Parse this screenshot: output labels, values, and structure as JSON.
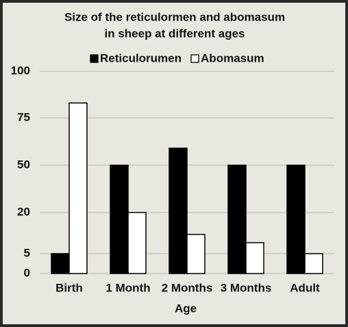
{
  "chart_data": {
    "type": "bar",
    "title": [
      "Size of the reticulormen and abomasum",
      "in sheep at different ages"
    ],
    "x_label": "Age",
    "categories": [
      "Birth",
      "1 Month",
      "2 Months",
      "3 Months",
      "Adult"
    ],
    "series": [
      {
        "name": "Reticulorumen",
        "color": "#000000",
        "values": [
          5,
          50,
          59,
          50,
          50
        ]
      },
      {
        "name": "Abomasum",
        "color": "#ffffff",
        "values": [
          83,
          20,
          12,
          9,
          5
        ]
      }
    ],
    "ylim": [
      0,
      100
    ],
    "yticks": [
      0,
      5,
      20,
      50,
      75,
      100
    ],
    "grid": true,
    "legend": "top"
  }
}
